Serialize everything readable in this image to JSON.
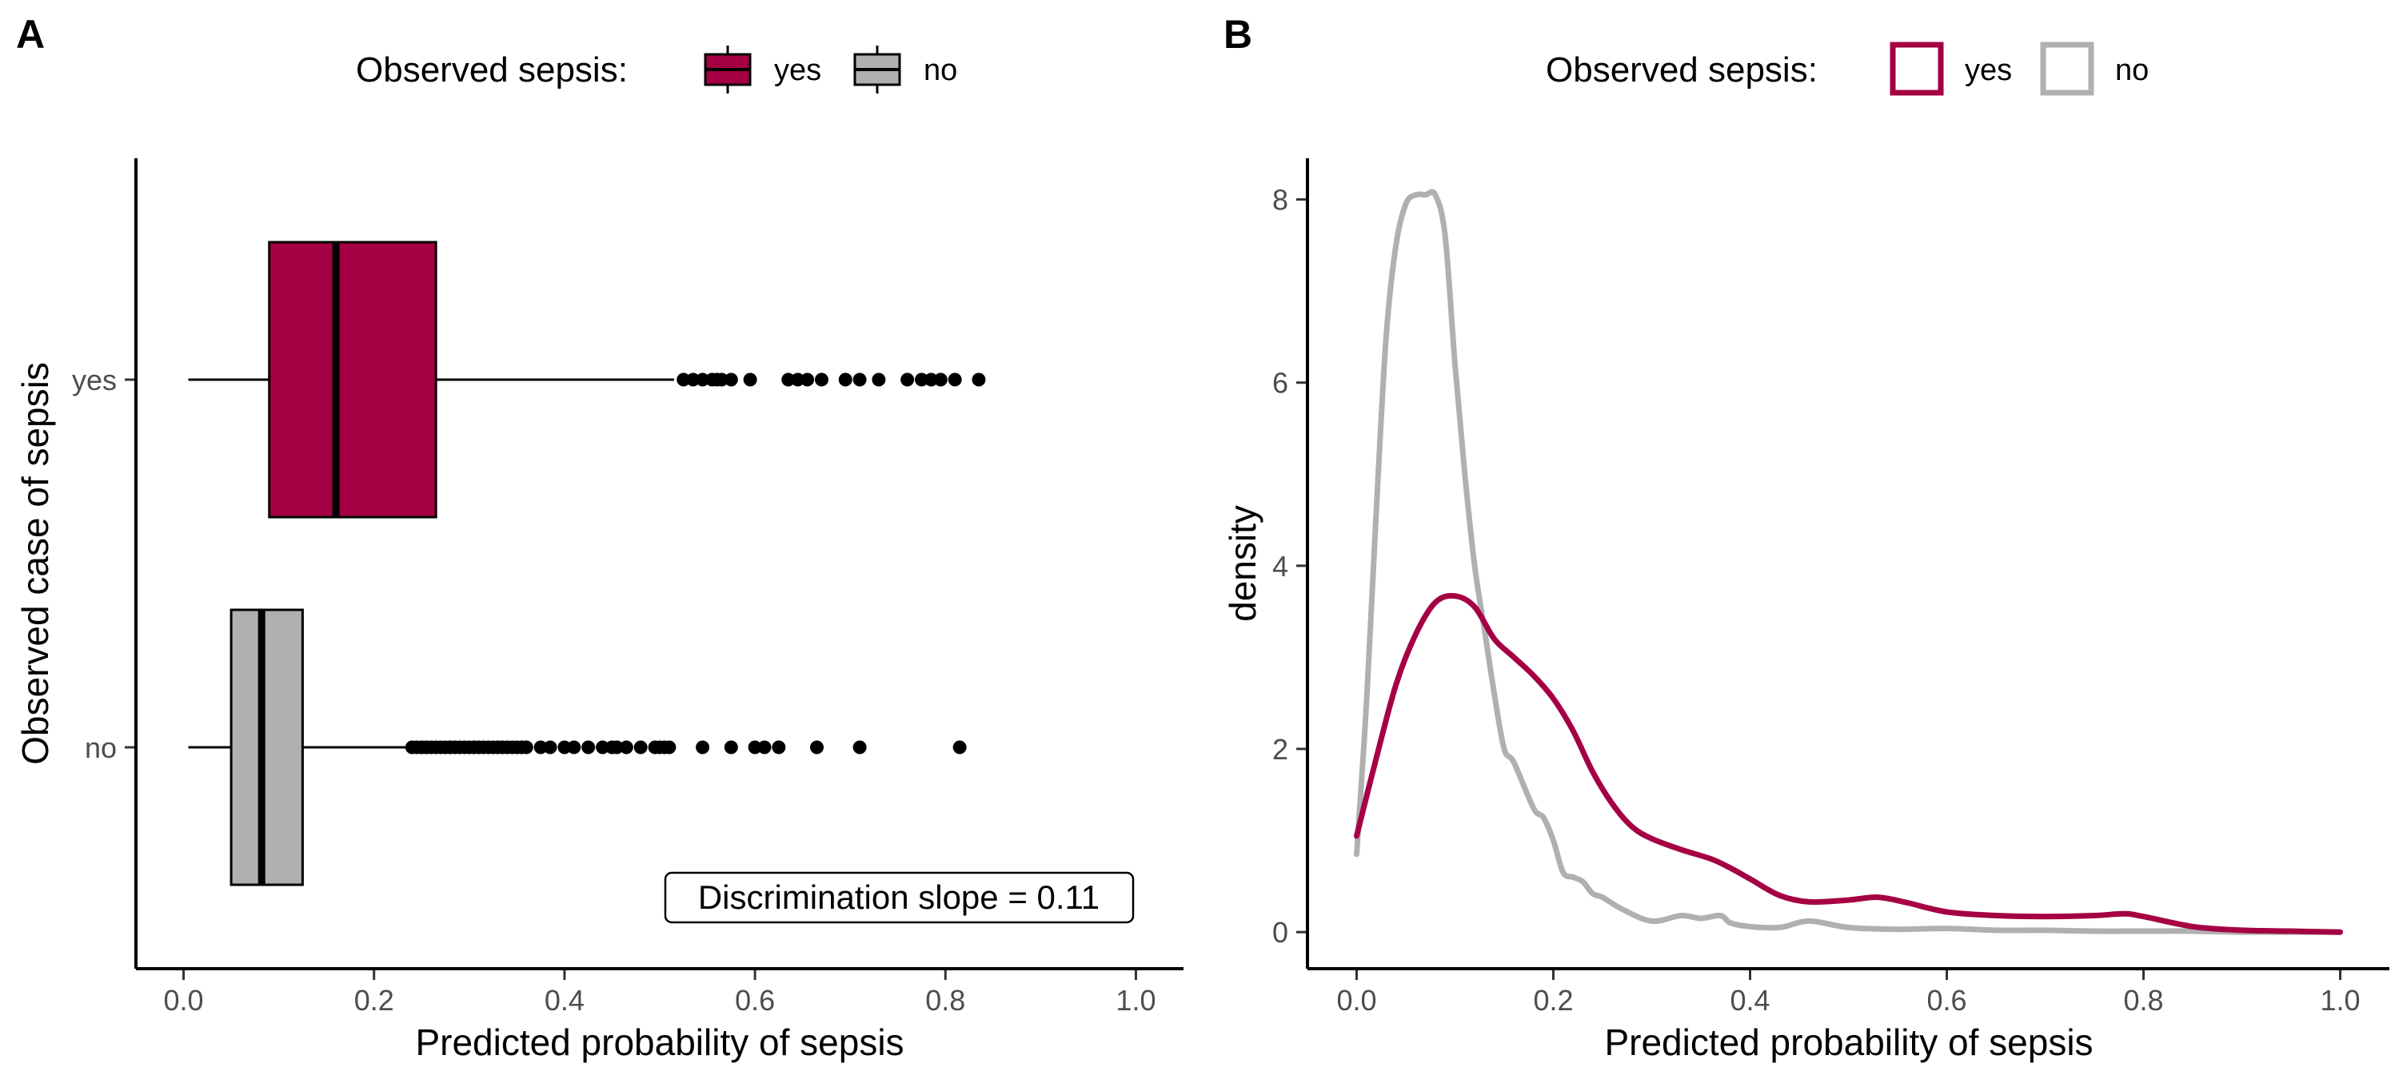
{
  "panel_a": {
    "tag": "A",
    "legend": {
      "title": "Observed sepsis:",
      "items": [
        {
          "label": "yes",
          "color": "#A50044"
        },
        {
          "label": "no",
          "color": "#B0B0B0"
        }
      ]
    },
    "annotation": "Discrimination slope = 0.11"
  },
  "panel_b": {
    "tag": "B",
    "legend": {
      "title": "Observed sepsis:",
      "items": [
        {
          "label": "yes",
          "color": "#A50044"
        },
        {
          "label": "no",
          "color": "#B0B0B0"
        }
      ]
    }
  },
  "chart_data": [
    {
      "type": "boxplot",
      "orientation": "horizontal",
      "xlabel": "Predicted probability of sepsis",
      "ylabel": "Observed case of sepsis",
      "xlim": [
        -0.05,
        1.05
      ],
      "xticks": [
        "0.0",
        "0.2",
        "0.4",
        "0.6",
        "0.8",
        "1.0"
      ],
      "categories": [
        "yes",
        "no"
      ],
      "series": [
        {
          "category": "yes",
          "color": "#A50044",
          "whisker_low": 0.005,
          "q1": 0.09,
          "median": 0.16,
          "q3": 0.265,
          "whisker_high": 0.515,
          "outliers": [
            0.525,
            0.535,
            0.545,
            0.555,
            0.56,
            0.565,
            0.575,
            0.595,
            0.635,
            0.645,
            0.655,
            0.67,
            0.695,
            0.71,
            0.73,
            0.76,
            0.775,
            0.785,
            0.795,
            0.81,
            0.835
          ]
        },
        {
          "category": "no",
          "color": "#B0B0B0",
          "whisker_low": 0.005,
          "q1": 0.05,
          "median": 0.082,
          "q3": 0.125,
          "whisker_high": 0.235,
          "outliers": [
            0.24,
            0.245,
            0.25,
            0.255,
            0.26,
            0.265,
            0.27,
            0.275,
            0.28,
            0.285,
            0.29,
            0.295,
            0.3,
            0.305,
            0.31,
            0.315,
            0.32,
            0.325,
            0.33,
            0.335,
            0.34,
            0.345,
            0.35,
            0.355,
            0.36,
            0.375,
            0.385,
            0.4,
            0.41,
            0.425,
            0.44,
            0.45,
            0.455,
            0.465,
            0.48,
            0.495,
            0.5,
            0.505,
            0.51,
            0.545,
            0.575,
            0.6,
            0.61,
            0.625,
            0.665,
            0.71,
            0.815
          ]
        }
      ]
    },
    {
      "type": "line",
      "subtype": "density",
      "xlabel": "Predicted probability of sepsis",
      "ylabel": "density",
      "xlim": [
        -0.05,
        1.05
      ],
      "ylim": [
        -0.4,
        8.45
      ],
      "xticks": [
        "0.0",
        "0.2",
        "0.4",
        "0.6",
        "0.8",
        "1.0"
      ],
      "yticks": [
        "0",
        "2",
        "4",
        "6",
        "8"
      ],
      "series": [
        {
          "name": "no",
          "color": "#B0B0B0",
          "x": [
            0,
            0.01,
            0.02,
            0.03,
            0.04,
            0.05,
            0.06,
            0.07,
            0.08,
            0.09,
            0.1,
            0.11,
            0.12,
            0.13,
            0.14,
            0.15,
            0.16,
            0.18,
            0.19,
            0.2,
            0.21,
            0.22,
            0.23,
            0.24,
            0.25,
            0.27,
            0.3,
            0.33,
            0.35,
            0.37,
            0.38,
            0.4,
            0.43,
            0.46,
            0.5,
            0.55,
            0.6,
            0.65,
            0.7,
            0.75,
            0.8,
            0.85,
            0.9,
            0.95,
            1.0
          ],
          "y": [
            0.85,
            2.5,
            4.6,
            6.5,
            7.5,
            7.95,
            8.05,
            8.05,
            8.05,
            7.6,
            6.2,
            5.0,
            4.0,
            3.3,
            2.6,
            2.0,
            1.85,
            1.35,
            1.25,
            1.0,
            0.65,
            0.6,
            0.55,
            0.42,
            0.38,
            0.25,
            0.12,
            0.18,
            0.15,
            0.18,
            0.1,
            0.06,
            0.05,
            0.12,
            0.05,
            0.03,
            0.04,
            0.02,
            0.02,
            0.01,
            0.01,
            0.01,
            0.0,
            0.0,
            0.0
          ]
        },
        {
          "name": "yes",
          "color": "#A50044",
          "x": [
            0,
            0.02,
            0.04,
            0.06,
            0.08,
            0.1,
            0.12,
            0.14,
            0.16,
            0.18,
            0.2,
            0.22,
            0.24,
            0.26,
            0.28,
            0.3,
            0.33,
            0.36,
            0.38,
            0.4,
            0.43,
            0.46,
            0.5,
            0.53,
            0.56,
            0.6,
            0.65,
            0.7,
            0.75,
            0.78,
            0.8,
            0.85,
            0.9,
            0.95,
            1.0
          ],
          "y": [
            1.05,
            1.9,
            2.7,
            3.25,
            3.6,
            3.67,
            3.55,
            3.2,
            3.0,
            2.8,
            2.55,
            2.2,
            1.75,
            1.4,
            1.15,
            1.02,
            0.9,
            0.8,
            0.7,
            0.58,
            0.4,
            0.33,
            0.35,
            0.38,
            0.32,
            0.22,
            0.18,
            0.17,
            0.18,
            0.2,
            0.17,
            0.06,
            0.02,
            0.01,
            0.0
          ]
        }
      ]
    }
  ]
}
